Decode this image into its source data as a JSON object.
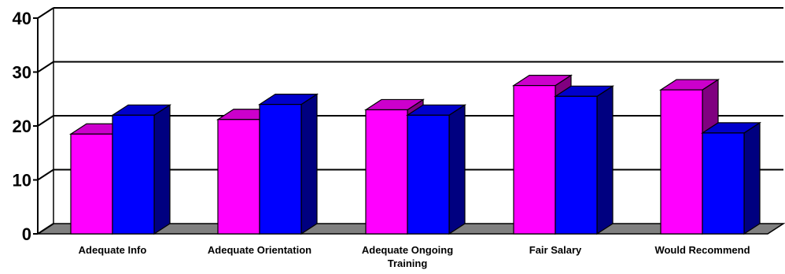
{
  "chart_data": {
    "type": "bar",
    "categories": [
      [
        "Adequate Info"
      ],
      [
        "Adequate Orientation"
      ],
      [
        "Adequate Ongoing",
        "Training"
      ],
      [
        "Fair Salary"
      ],
      [
        "Would Recommend"
      ]
    ],
    "series": [
      {
        "color": "#FF00FF",
        "top_color": "#CC00CC",
        "side_color": "#800080",
        "values": [
          18.5,
          21.2,
          23,
          27.5,
          26.7
        ]
      },
      {
        "color": "#0000FF",
        "top_color": "#0000CC",
        "side_color": "#000080",
        "values": [
          22,
          24,
          22,
          25.5,
          18.7
        ]
      }
    ],
    "ylim": [
      0,
      40
    ],
    "yticks": [
      0,
      10,
      20,
      30,
      40
    ],
    "grid": true,
    "legend": "none",
    "floor_color": "#808080",
    "three_d": true
  }
}
